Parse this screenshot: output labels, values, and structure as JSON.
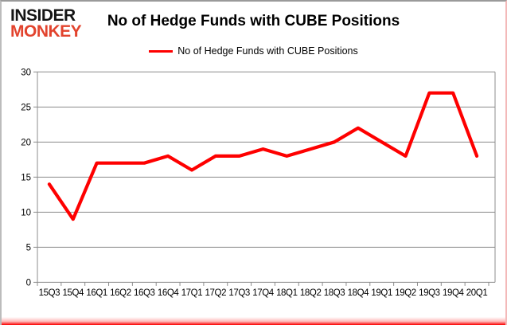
{
  "logo": {
    "line1": "INSIDER",
    "line2": "MONKEY"
  },
  "header": {
    "title": "No of Hedge Funds with CUBE Positions"
  },
  "legend": {
    "label": "No of Hedge Funds with CUBE Positions"
  },
  "colors": {
    "series_red": "#fe0000",
    "logo_red": "#e2432d",
    "grid_grey": "#8c8c8c",
    "text_black": "#000000",
    "border_pink": "#f3b9b9"
  },
  "chart_data": {
    "type": "line",
    "title": "No of Hedge Funds with CUBE Positions",
    "categories": [
      "15Q3",
      "15Q4",
      "16Q1",
      "16Q2",
      "16Q3",
      "16Q4",
      "17Q1",
      "17Q2",
      "17Q3",
      "17Q4",
      "18Q1",
      "18Q2",
      "18Q3",
      "18Q4",
      "19Q1",
      "19Q2",
      "19Q3",
      "19Q4",
      "20Q1"
    ],
    "series": [
      {
        "name": "No of Hedge Funds with CUBE Positions",
        "color": "#fe0000",
        "values": [
          14,
          9,
          17,
          17,
          17,
          18,
          16,
          18,
          18,
          19,
          18,
          19,
          20,
          22,
          20,
          18,
          27,
          27,
          18
        ]
      }
    ],
    "xlabel": "",
    "ylabel": "",
    "ylim": [
      0,
      30
    ],
    "ytick_step": 5,
    "yticks": [
      0,
      5,
      10,
      15,
      20,
      25,
      30
    ],
    "grid": true,
    "legend_position": "top"
  }
}
